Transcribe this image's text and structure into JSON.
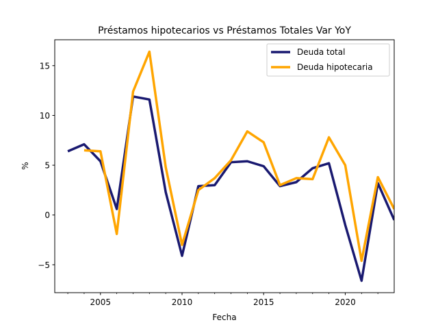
{
  "chart_data": {
    "type": "line",
    "title": "Préstamos hipotecarios vs Préstamos Totales Var YoY",
    "xlabel": "Fecha",
    "ylabel": "%",
    "xlim": [
      2002.2,
      2023.0
    ],
    "ylim": [
      -7.8,
      17.6
    ],
    "x_ticks": [
      2005,
      2010,
      2015,
      2020
    ],
    "x_minor_ticks": [
      2003,
      2004,
      2006,
      2007,
      2008,
      2009,
      2011,
      2012,
      2013,
      2014,
      2016,
      2017,
      2018,
      2019,
      2021,
      2022
    ],
    "y_ticks": [
      -5,
      0,
      5,
      10,
      15
    ],
    "legend_position": "top-right",
    "grid": false,
    "series": [
      {
        "name": "Deuda total",
        "color": "#191970",
        "x": [
          2003,
          2004,
          2005,
          2006,
          2007,
          2008,
          2009,
          2010,
          2011,
          2012,
          2013,
          2014,
          2015,
          2016,
          2017,
          2018,
          2019,
          2020,
          2021,
          2022,
          2023
        ],
        "values": [
          6.4,
          7.1,
          5.4,
          0.6,
          11.9,
          11.6,
          2.3,
          -4.1,
          2.9,
          3.0,
          5.3,
          5.4,
          4.9,
          2.9,
          3.3,
          4.7,
          5.2,
          -1.0,
          -6.6,
          3.2,
          -0.5
        ]
      },
      {
        "name": "Deuda hipotecaria",
        "color": "#FFA500",
        "x": [
          2004,
          2005,
          2006,
          2007,
          2008,
          2009,
          2010,
          2011,
          2012,
          2013,
          2014,
          2015,
          2016,
          2017,
          2018,
          2019,
          2020,
          2021,
          2022,
          2023
        ],
        "values": [
          6.5,
          6.4,
          -1.9,
          12.4,
          16.4,
          4.8,
          -3.0,
          2.5,
          3.7,
          5.5,
          8.4,
          7.3,
          3.0,
          3.7,
          3.6,
          7.8,
          5.0,
          -4.6,
          3.8,
          0.6
        ]
      }
    ]
  }
}
